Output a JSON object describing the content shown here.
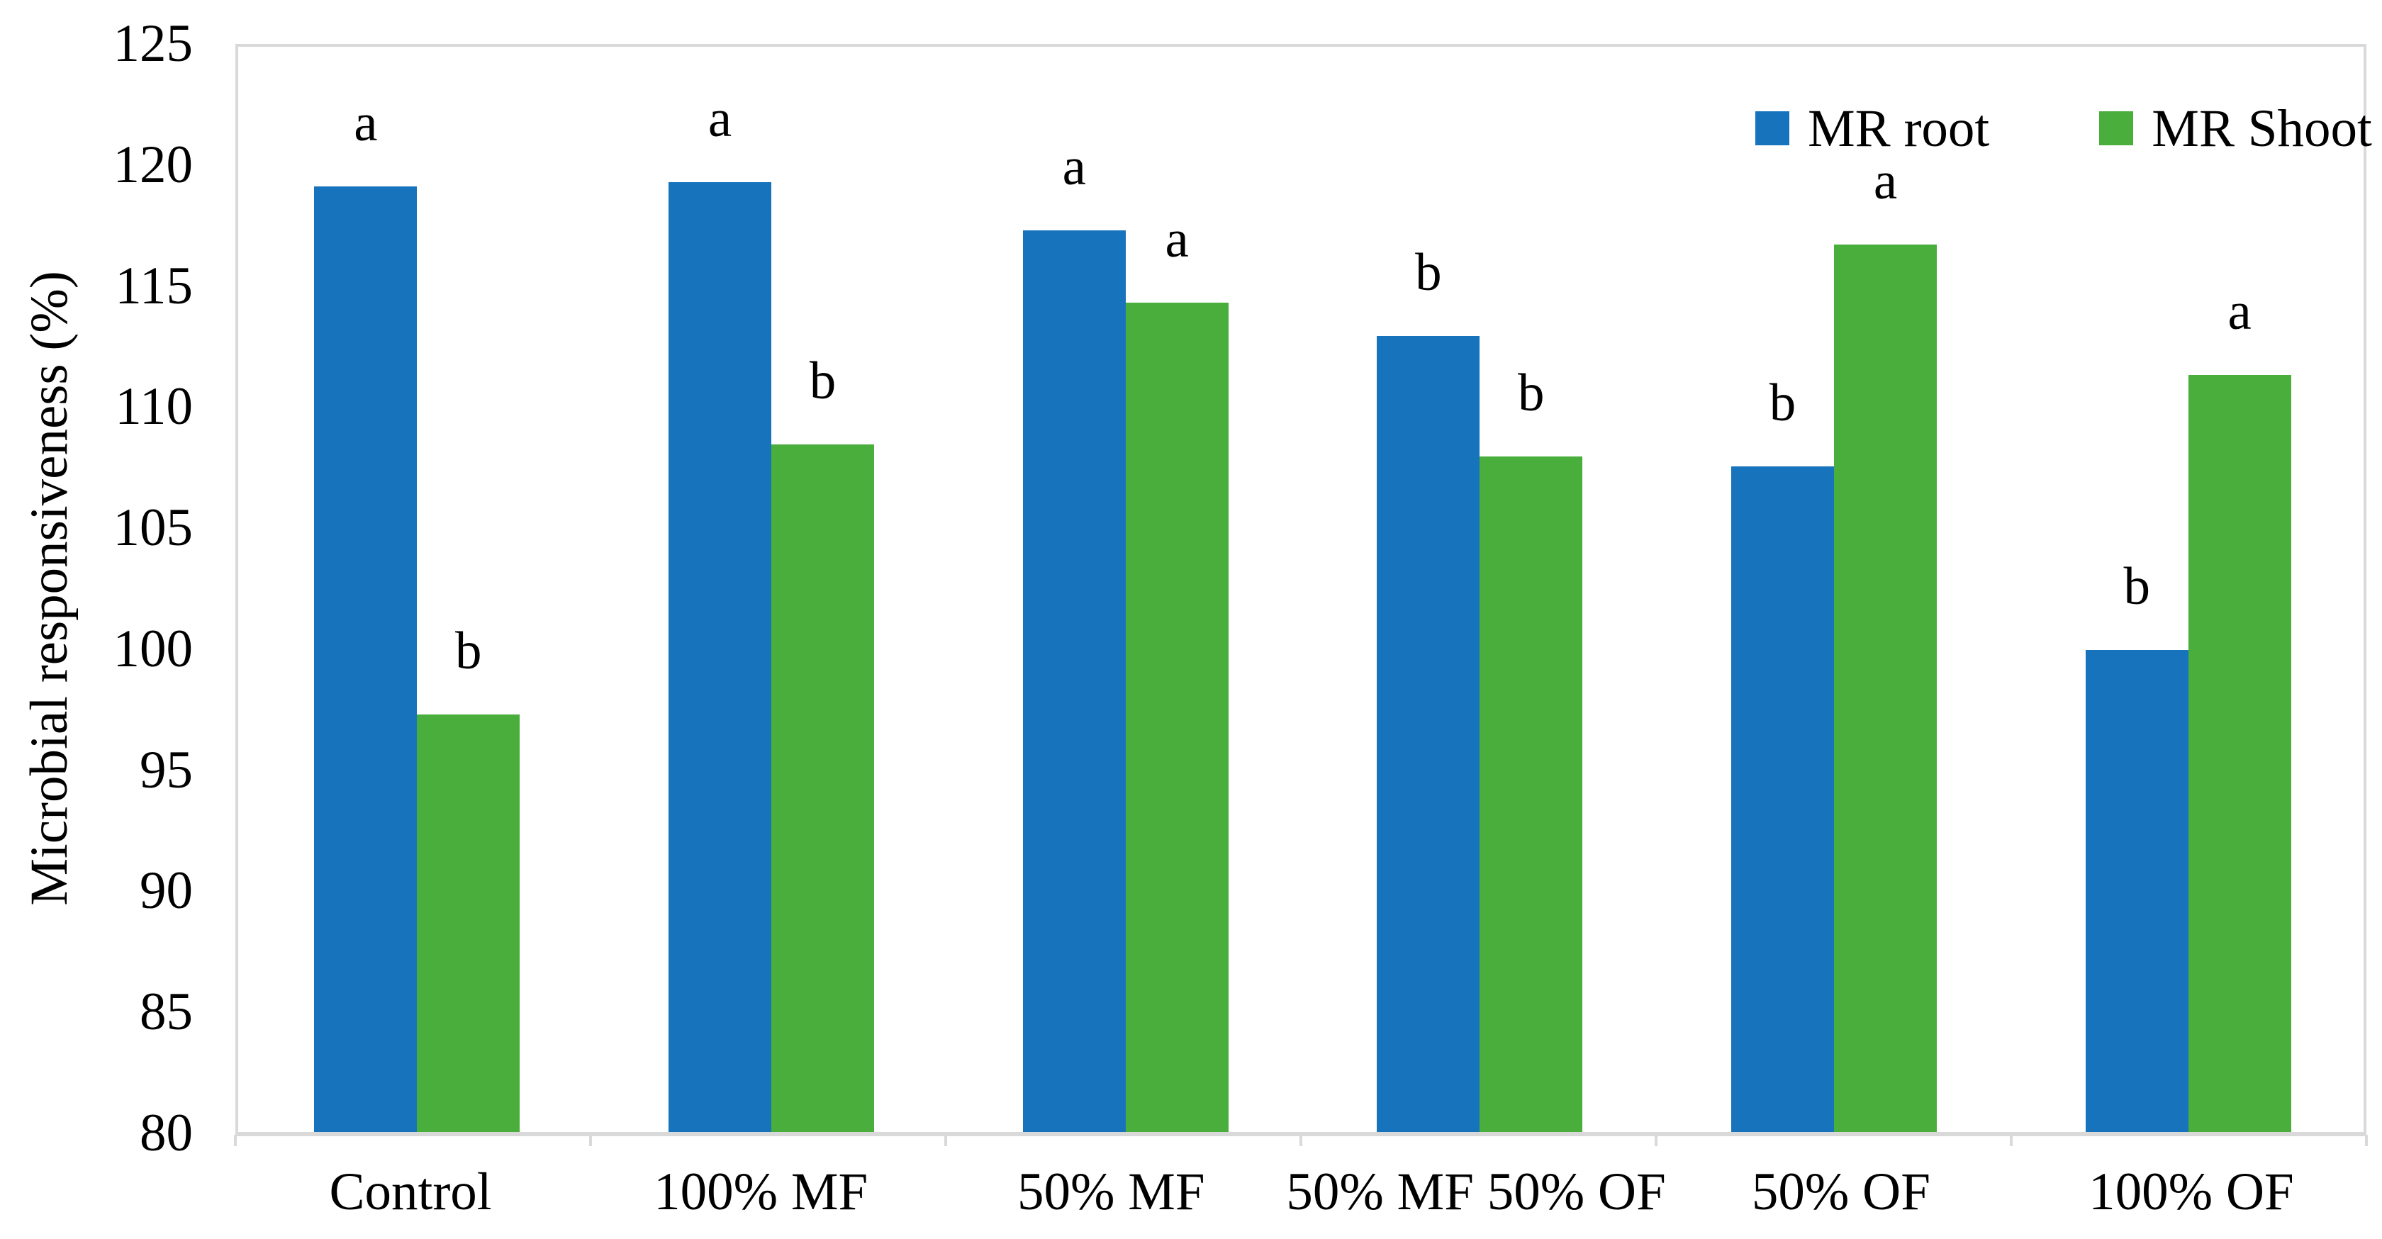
{
  "figure": {
    "background": "#ffffff",
    "frame_color": "#D9D9D9"
  },
  "chart_data": {
    "type": "bar",
    "title": "",
    "xlabel": "",
    "ylabel": "Microbial responsiveness (%)",
    "ylim": [
      80,
      125
    ],
    "yticks": [
      80,
      85,
      90,
      95,
      100,
      105,
      110,
      115,
      120,
      125
    ],
    "grid": false,
    "legend_position": "top-right",
    "categories": [
      "Control",
      "100% MF",
      "50% MF",
      "50% MF 50% OF",
      "50% OF",
      "100% OF"
    ],
    "series": [
      {
        "name": "MR root",
        "color": "#1774BC",
        "values": [
          119.2,
          119.4,
          117.4,
          113.0,
          107.6,
          100.0
        ],
        "letters": [
          "a",
          "a",
          "a",
          "b",
          "b",
          "b"
        ]
      },
      {
        "name": "MR Shoot",
        "color": "#4AAE3C",
        "values": [
          97.3,
          108.5,
          114.4,
          108.0,
          116.8,
          111.4
        ],
        "letters": [
          "b",
          "b",
          "a",
          "b",
          "a",
          "a"
        ]
      }
    ]
  }
}
